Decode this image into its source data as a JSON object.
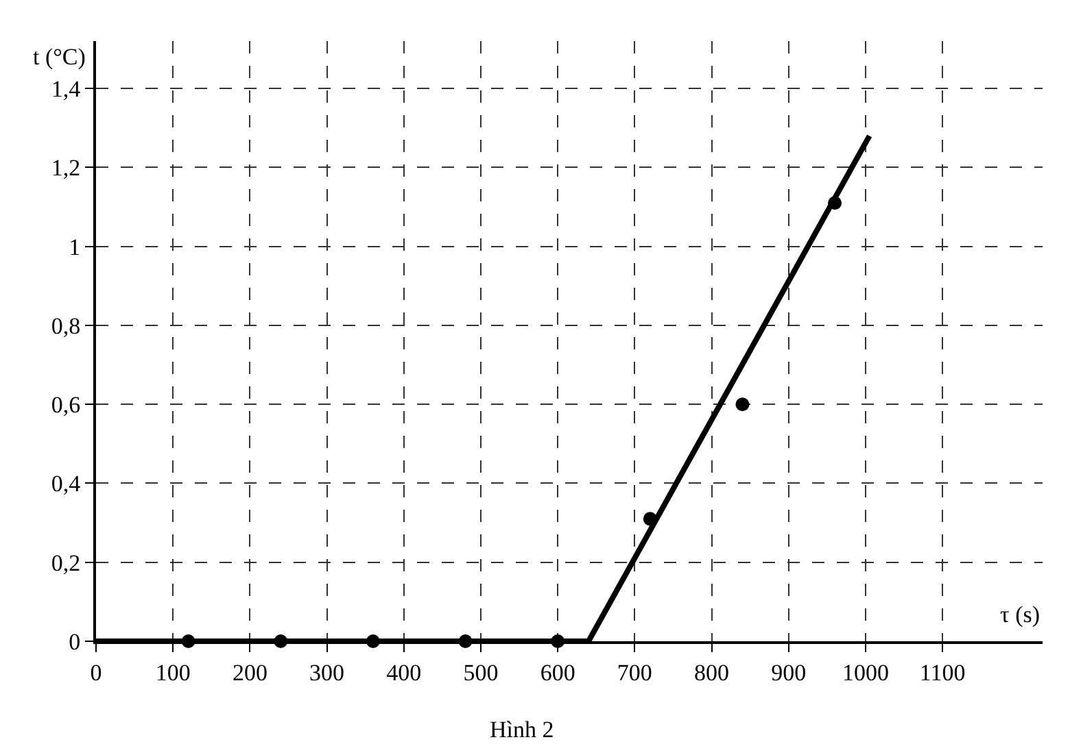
{
  "chart_data": {
    "type": "scatter",
    "xlabel": "τ (s)",
    "ylabel": "t (°C)",
    "annotations": [
      "Hình 2"
    ],
    "x": [
      120,
      240,
      360,
      480,
      600,
      720,
      840,
      960
    ],
    "series": [
      {
        "color": "#000000",
        "marker": "circle",
        "values": [
          0,
          0,
          0,
          0,
          0,
          0.31,
          0.6,
          1.11
        ]
      },
      {
        "type": "line",
        "color": "#000000",
        "marker": "none",
        "x": [
          0,
          640,
          1005
        ],
        "values": [
          0,
          0,
          1.28
        ]
      }
    ],
    "xlim": [
      0,
      1230
    ],
    "ylim": [
      0,
      1.52
    ],
    "xticks": [
      0,
      100,
      200,
      300,
      400,
      500,
      600,
      700,
      800,
      900,
      1000,
      1100
    ],
    "yticks": [
      0,
      {
        "value": 0.2,
        "label": "0,2"
      },
      {
        "value": 0.4,
        "label": "0,4"
      },
      {
        "value": 0.6,
        "label": "0,6"
      },
      {
        "value": 0.8,
        "label": "0,8"
      },
      1,
      {
        "value": 1.2,
        "label": "1,2"
      },
      {
        "value": 1.4,
        "label": "1,4"
      }
    ],
    "grid": true,
    "line_style": "solid"
  }
}
